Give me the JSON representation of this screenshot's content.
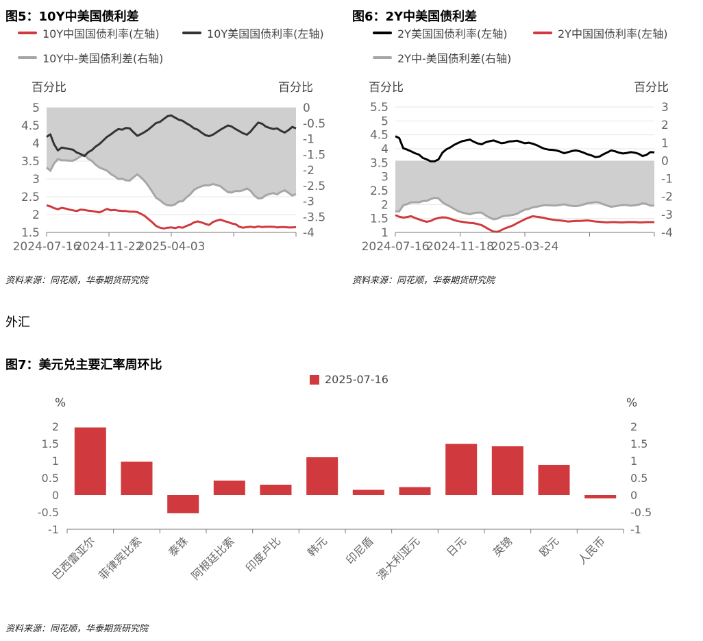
{
  "fig5": {
    "title": "图5：10Y中美国债利差",
    "legend": [
      {
        "label": "10Y中国国债利率(左轴)",
        "color": "#d0393d"
      },
      {
        "label": "10Y美国国债利率(左轴)",
        "color": "#333333"
      },
      {
        "label": "10Y中-美国债利差(右轴)",
        "color": "#a6a6a6"
      }
    ],
    "left_unit": "百分比",
    "right_unit": "百分比",
    "source": "资料来源：同花顺，华泰期货研究院"
  },
  "fig6": {
    "title": "图6：2Y中美国债利差",
    "legend": [
      {
        "label": "2Y美国国债利率(左轴)",
        "color": "#000000"
      },
      {
        "label": "2Y中国国债利率(左轴)",
        "color": "#d0393d"
      },
      {
        "label": "2Y中-美国债利差(右轴)",
        "color": "#a6a6a6"
      }
    ],
    "left_unit": "百分比",
    "right_unit": "百分比",
    "source": "资料来源：同花顺，华泰期货研究院"
  },
  "section_heading": "外汇",
  "fig7": {
    "title": "图7：美元兑主要汇率周环比",
    "legend_label": "2025-07-16",
    "legend_color": "#d0393d",
    "left_unit": "%",
    "right_unit": "%",
    "source": "资料来源：同花顺，华泰期货研究院"
  },
  "chart_data": [
    {
      "type": "line",
      "x_tick_labels": [
        "2024-07-16",
        "2024-11-22",
        "2025-04-03"
      ],
      "left_axis": {
        "ylim": [
          1.5,
          5
        ],
        "ticks": [
          "1.5",
          "2",
          "2.5",
          "3",
          "3.5",
          "4",
          "4.5",
          "5"
        ]
      },
      "right_axis": {
        "ylim": [
          -4,
          0
        ],
        "ticks": [
          "-4",
          "-3.5",
          "-3",
          "-2.5",
          "-2",
          "-1.5",
          "-1",
          "-0.5",
          "0"
        ]
      },
      "series": [
        {
          "name": "10Y中国国债利率(左轴)",
          "axis": "left",
          "color": "#d0393d",
          "values": [
            2.26,
            2.23,
            2.18,
            2.15,
            2.19,
            2.17,
            2.14,
            2.12,
            2.1,
            2.14,
            2.13,
            2.11,
            2.1,
            2.08,
            2.06,
            2.11,
            2.16,
            2.12,
            2.13,
            2.11,
            2.1,
            2.1,
            2.08,
            2.08,
            2.07,
            2.02,
            1.96,
            1.87,
            1.78,
            1.68,
            1.63,
            1.61,
            1.63,
            1.64,
            1.62,
            1.65,
            1.63,
            1.68,
            1.72,
            1.78,
            1.81,
            1.78,
            1.74,
            1.71,
            1.79,
            1.83,
            1.86,
            1.82,
            1.79,
            1.75,
            1.73,
            1.66,
            1.63,
            1.65,
            1.66,
            1.64,
            1.67,
            1.65,
            1.66,
            1.66,
            1.66,
            1.64,
            1.65,
            1.65,
            1.64,
            1.64,
            1.65
          ]
        },
        {
          "name": "10Y美国国债利率(左轴)",
          "axis": "left",
          "color": "#333333",
          "values": [
            4.18,
            4.25,
            3.97,
            3.8,
            3.88,
            3.86,
            3.84,
            3.82,
            3.74,
            3.7,
            3.64,
            3.75,
            3.81,
            3.91,
            3.98,
            4.08,
            4.18,
            4.25,
            4.33,
            4.4,
            4.38,
            4.43,
            4.42,
            4.31,
            4.21,
            4.26,
            4.32,
            4.39,
            4.48,
            4.57,
            4.6,
            4.68,
            4.76,
            4.78,
            4.72,
            4.66,
            4.63,
            4.56,
            4.5,
            4.42,
            4.38,
            4.3,
            4.23,
            4.2,
            4.24,
            4.31,
            4.38,
            4.44,
            4.5,
            4.47,
            4.4,
            4.34,
            4.28,
            4.24,
            4.33,
            4.46,
            4.58,
            4.55,
            4.47,
            4.43,
            4.4,
            4.42,
            4.35,
            4.3,
            4.37,
            4.46,
            4.42
          ]
        },
        {
          "name": "10Y中-美国债利差(右轴)",
          "axis": "right",
          "color": "#a6a6a6",
          "area_to": 0,
          "values": [
            -1.92,
            -2.02,
            -1.79,
            -1.65,
            -1.69,
            -1.69,
            -1.7,
            -1.7,
            -1.64,
            -1.56,
            -1.51,
            -1.64,
            -1.71,
            -1.83,
            -1.92,
            -1.97,
            -2.02,
            -2.13,
            -2.2,
            -2.29,
            -2.28,
            -2.33,
            -2.34,
            -2.23,
            -2.14,
            -2.24,
            -2.36,
            -2.52,
            -2.7,
            -2.89,
            -2.97,
            -3.07,
            -3.13,
            -3.14,
            -3.1,
            -3.01,
            -3.0,
            -2.88,
            -2.78,
            -2.64,
            -2.57,
            -2.52,
            -2.49,
            -2.49,
            -2.45,
            -2.48,
            -2.52,
            -2.62,
            -2.71,
            -2.72,
            -2.67,
            -2.68,
            -2.65,
            -2.59,
            -2.67,
            -2.82,
            -2.91,
            -2.9,
            -2.81,
            -2.77,
            -2.74,
            -2.78,
            -2.7,
            -2.65,
            -2.73,
            -2.82,
            -2.77
          ]
        }
      ]
    },
    {
      "type": "line",
      "x_tick_labels": [
        "2024-07-16",
        "2024-11-18",
        "2025-03-24"
      ],
      "left_axis": {
        "ylim": [
          1,
          5.5
        ],
        "ticks": [
          "1",
          "1.5",
          "2",
          "2.5",
          "3",
          "3.5",
          "4",
          "4.5",
          "5",
          "5.5"
        ]
      },
      "right_axis": {
        "ylim": [
          -4,
          3
        ],
        "ticks": [
          "-4",
          "-3",
          "-2",
          "-1",
          "0",
          "1",
          "2",
          "3"
        ]
      },
      "series": [
        {
          "name": "2Y美国国债利率(左轴)",
          "axis": "left",
          "color": "#000000",
          "values": [
            4.45,
            4.38,
            4.02,
            3.97,
            3.91,
            3.84,
            3.79,
            3.67,
            3.62,
            3.55,
            3.55,
            3.62,
            3.86,
            3.98,
            4.05,
            4.14,
            4.21,
            4.27,
            4.3,
            4.33,
            4.25,
            4.19,
            4.16,
            4.23,
            4.27,
            4.3,
            4.25,
            4.2,
            4.22,
            4.26,
            4.27,
            4.29,
            4.24,
            4.2,
            4.22,
            4.18,
            4.13,
            4.06,
            4.0,
            3.97,
            3.96,
            3.94,
            3.9,
            3.84,
            3.88,
            3.92,
            3.94,
            3.91,
            3.86,
            3.8,
            3.76,
            3.7,
            3.72,
            3.8,
            3.87,
            3.94,
            3.91,
            3.86,
            3.83,
            3.85,
            3.88,
            3.86,
            3.82,
            3.74,
            3.78,
            3.88,
            3.87
          ]
        },
        {
          "name": "2Y中国国债利率(左轴)",
          "axis": "left",
          "color": "#d0393d",
          "values": [
            1.62,
            1.56,
            1.53,
            1.55,
            1.58,
            1.52,
            1.47,
            1.42,
            1.38,
            1.41,
            1.48,
            1.52,
            1.54,
            1.53,
            1.49,
            1.44,
            1.4,
            1.38,
            1.36,
            1.34,
            1.33,
            1.3,
            1.26,
            1.18,
            1.1,
            1.03,
            1.02,
            1.08,
            1.15,
            1.2,
            1.25,
            1.33,
            1.4,
            1.47,
            1.53,
            1.58,
            1.56,
            1.54,
            1.52,
            1.48,
            1.46,
            1.44,
            1.43,
            1.41,
            1.39,
            1.4,
            1.41,
            1.41,
            1.42,
            1.43,
            1.41,
            1.39,
            1.38,
            1.37,
            1.36,
            1.37,
            1.37,
            1.36,
            1.36,
            1.37,
            1.37,
            1.37,
            1.36,
            1.36,
            1.37,
            1.37,
            1.37
          ]
        },
        {
          "name": "2Y中-美国债利差(右轴)",
          "axis": "right",
          "color": "#a6a6a6",
          "area_to": 0,
          "values": [
            -2.83,
            -2.82,
            -2.49,
            -2.42,
            -2.33,
            -2.32,
            -2.32,
            -2.25,
            -2.24,
            -2.14,
            -2.07,
            -2.1,
            -2.32,
            -2.45,
            -2.56,
            -2.7,
            -2.81,
            -2.89,
            -2.94,
            -2.99,
            -2.92,
            -2.89,
            -2.9,
            -3.05,
            -3.17,
            -3.27,
            -3.23,
            -3.12,
            -3.07,
            -3.06,
            -3.02,
            -2.96,
            -2.84,
            -2.73,
            -2.69,
            -2.6,
            -2.57,
            -2.52,
            -2.48,
            -2.49,
            -2.5,
            -2.5,
            -2.47,
            -2.43,
            -2.49,
            -2.52,
            -2.53,
            -2.5,
            -2.44,
            -2.37,
            -2.35,
            -2.31,
            -2.34,
            -2.43,
            -2.51,
            -2.57,
            -2.54,
            -2.5,
            -2.47,
            -2.48,
            -2.51,
            -2.49,
            -2.46,
            -2.38,
            -2.41,
            -2.51,
            -2.5
          ]
        }
      ]
    },
    {
      "type": "bar",
      "categories": [
        "巴西雷亚尔",
        "菲律宾比索",
        "泰铢",
        "阿根廷比索",
        "印度卢比",
        "韩元",
        "印尼盾",
        "澳大利亚元",
        "日元",
        "英镑",
        "欧元",
        "人民币"
      ],
      "series": [
        {
          "name": "2025-07-16",
          "color": "#d0393d",
          "values": [
            1.97,
            0.97,
            -0.53,
            0.42,
            0.3,
            1.1,
            0.15,
            0.23,
            1.49,
            1.42,
            0.88,
            -0.1
          ]
        }
      ],
      "ylim": [
        -1,
        2
      ],
      "y_ticks": [
        "-1",
        "-0.5",
        "0",
        "0.5",
        "1",
        "1.5",
        "2"
      ],
      "right_ticks": [
        "-1",
        "-0.5",
        "0",
        "0.5",
        "1",
        "1.5",
        "2"
      ]
    }
  ]
}
